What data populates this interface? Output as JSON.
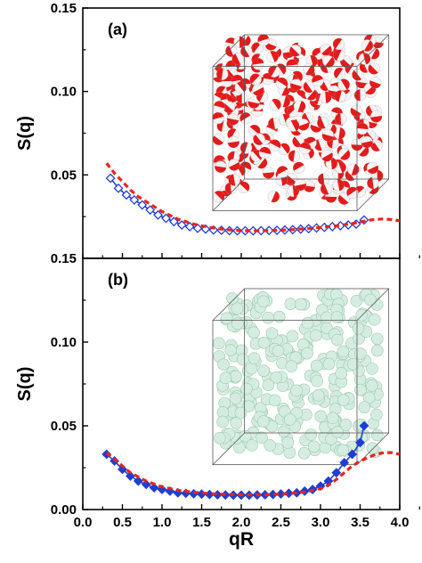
{
  "colors": {
    "axis": "#000000",
    "simulation_series": "#1f3fd0",
    "theory_series": "#e8251b",
    "sphere_red": "#e31b1b",
    "sphere_white": "#f4f4f4",
    "sphere_green": "#d5ede0",
    "box_edge": "#555555"
  },
  "chart_data": [
    {
      "type": "line",
      "panel_label": "(a)",
      "ylabel": "S(q)",
      "xlim": [
        0.0,
        4.0
      ],
      "ylim": [
        0.0,
        0.15
      ],
      "y_ticks": [
        "0.15",
        "0.10",
        "0.05"
      ],
      "y_tick_values": [
        0.15,
        0.1,
        0.05
      ],
      "inset": "3D box of red/white Janus spheres",
      "series": [
        {
          "style": "blue line with open diamond markers",
          "marker": "open-diamond",
          "x": [
            0.35,
            0.45,
            0.55,
            0.65,
            0.75,
            0.85,
            0.95,
            1.05,
            1.15,
            1.25,
            1.35,
            1.45,
            1.55,
            1.65,
            1.75,
            1.85,
            1.95,
            2.05,
            2.15,
            2.25,
            2.35,
            2.45,
            2.55,
            2.65,
            2.75,
            2.85,
            2.95,
            3.05,
            3.15,
            3.25,
            3.35,
            3.45,
            3.55
          ],
          "y": [
            0.048,
            0.042,
            0.038,
            0.035,
            0.032,
            0.029,
            0.026,
            0.024,
            0.022,
            0.02,
            0.019,
            0.018,
            0.0175,
            0.017,
            0.0168,
            0.0166,
            0.0165,
            0.0165,
            0.0165,
            0.0166,
            0.0167,
            0.0168,
            0.017,
            0.0172,
            0.0175,
            0.0178,
            0.0182,
            0.0186,
            0.019,
            0.0195,
            0.02,
            0.0205,
            0.023
          ]
        },
        {
          "style": "red dashed",
          "marker": "none",
          "x": [
            0.3,
            0.4,
            0.5,
            0.6,
            0.7,
            0.8,
            1.0,
            1.2,
            1.4,
            1.6,
            1.8,
            2.0,
            2.2,
            2.4,
            2.6,
            2.8,
            3.0,
            3.2,
            3.4,
            3.5,
            3.6,
            3.7,
            3.8,
            3.9,
            4.0
          ],
          "y": [
            0.057,
            0.051,
            0.046,
            0.041,
            0.037,
            0.034,
            0.028,
            0.0235,
            0.0205,
            0.0185,
            0.0172,
            0.0166,
            0.0165,
            0.0167,
            0.0171,
            0.0177,
            0.0185,
            0.0195,
            0.0208,
            0.0218,
            0.0228,
            0.0234,
            0.0236,
            0.0232,
            0.0225
          ]
        }
      ]
    },
    {
      "type": "line",
      "panel_label": "(b)",
      "xlabel": "qR",
      "ylabel": "S(q)",
      "xlim": [
        0.0,
        4.0
      ],
      "ylim": [
        0.0,
        0.15
      ],
      "x_ticks": [
        "0.0",
        "0.5",
        "1.0",
        "1.5",
        "2.0",
        "2.5",
        "3.0",
        "3.5",
        "4.0"
      ],
      "x_tick_values": [
        0.0,
        0.5,
        1.0,
        1.5,
        2.0,
        2.5,
        3.0,
        3.5,
        4.0
      ],
      "y_ticks": [
        "0.15",
        "0.10",
        "0.05",
        "0.00"
      ],
      "y_tick_values": [
        0.15,
        0.1,
        0.05,
        0.0
      ],
      "inset": "3D box of pale green spheres",
      "series": [
        {
          "style": "blue line with filled diamond markers",
          "marker": "filled-diamond",
          "x": [
            0.3,
            0.4,
            0.5,
            0.6,
            0.7,
            0.8,
            0.9,
            1.0,
            1.1,
            1.2,
            1.3,
            1.4,
            1.5,
            1.6,
            1.7,
            1.8,
            1.9,
            2.0,
            2.1,
            2.2,
            2.3,
            2.4,
            2.5,
            2.6,
            2.7,
            2.8,
            2.9,
            3.0,
            3.1,
            3.2,
            3.3,
            3.4,
            3.5,
            3.55
          ],
          "y": [
            0.033,
            0.029,
            0.024,
            0.02,
            0.017,
            0.015,
            0.013,
            0.012,
            0.011,
            0.01,
            0.0097,
            0.0094,
            0.0092,
            0.009,
            0.0088,
            0.0087,
            0.0086,
            0.0086,
            0.0086,
            0.0087,
            0.0088,
            0.009,
            0.0093,
            0.0097,
            0.01,
            0.011,
            0.012,
            0.014,
            0.017,
            0.022,
            0.028,
            0.033,
            0.04,
            0.05
          ]
        },
        {
          "style": "red dashed",
          "marker": "none",
          "x": [
            0.3,
            0.4,
            0.5,
            0.6,
            0.8,
            1.0,
            1.2,
            1.4,
            1.6,
            1.8,
            2.0,
            2.2,
            2.4,
            2.6,
            2.8,
            3.0,
            3.1,
            3.2,
            3.3,
            3.4,
            3.5,
            3.6,
            3.7,
            3.8,
            3.9,
            4.0
          ],
          "y": [
            0.034,
            0.03,
            0.026,
            0.022,
            0.017,
            0.0135,
            0.0115,
            0.0103,
            0.0095,
            0.009,
            0.0088,
            0.0088,
            0.009,
            0.0095,
            0.0105,
            0.0125,
            0.0145,
            0.018,
            0.022,
            0.026,
            0.029,
            0.031,
            0.033,
            0.034,
            0.034,
            0.033
          ]
        }
      ]
    }
  ]
}
